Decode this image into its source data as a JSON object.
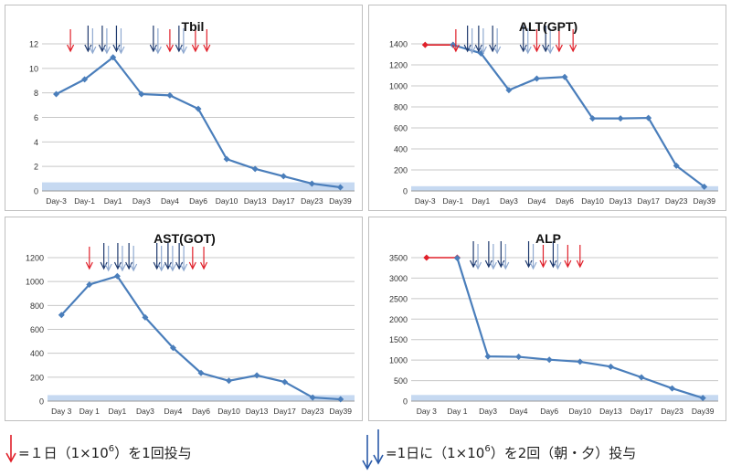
{
  "chart_data": [
    {
      "type": "line",
      "title": "Tbil",
      "categories": [
        "Day-3",
        "Day-1",
        "Day1",
        "Day3",
        "Day4",
        "Day6",
        "Day10",
        "Day13",
        "Day17",
        "Day23",
        "Day39"
      ],
      "series": [
        {
          "values": [
            7.9,
            9.1,
            10.9,
            7.9,
            7.8,
            6.7,
            2.6,
            1.8,
            1.2,
            0.6,
            0.3
          ]
        }
      ],
      "yticks": [
        "0",
        "2",
        "4",
        "6",
        "8",
        "10",
        "12"
      ],
      "ylim": [
        0,
        12
      ],
      "normal_band": [
        0,
        0.7
      ],
      "grid": true,
      "arrows": [
        {
          "x": 0.5,
          "kind": "single"
        },
        {
          "x": 1.2,
          "kind": "double"
        },
        {
          "x": 1.7,
          "kind": "double"
        },
        {
          "x": 2.2,
          "kind": "double"
        },
        {
          "x": 3.5,
          "kind": "double"
        },
        {
          "x": 4.0,
          "kind": "single"
        },
        {
          "x": 4.4,
          "kind": "double"
        },
        {
          "x": 4.9,
          "kind": "single"
        },
        {
          "x": 5.3,
          "kind": "single"
        }
      ]
    },
    {
      "type": "line",
      "title": "ALT(GPT)",
      "categories": [
        "Day-3",
        "Day-1",
        "Day1",
        "Day3",
        "Day4",
        "Day6",
        "Day10",
        "Day13",
        "Day17",
        "Day23",
        "Day39"
      ],
      "series": [
        {
          "values": [
            null,
            1390,
            1310,
            960,
            1070,
            1085,
            690,
            690,
            695,
            240,
            40
          ]
        }
      ],
      "pre_treatment": [
        {
          "x": 0,
          "y": 1390
        },
        {
          "x": 1,
          "y": 1390
        }
      ],
      "yticks": [
        "0",
        "200",
        "400",
        "600",
        "800",
        "1000",
        "1200",
        "1400"
      ],
      "ylim": [
        0,
        1400
      ],
      "normal_band": [
        0,
        45
      ],
      "grid": true,
      "arrows": [
        {
          "x": 1.1,
          "kind": "single"
        },
        {
          "x": 1.6,
          "kind": "double"
        },
        {
          "x": 2.0,
          "kind": "double"
        },
        {
          "x": 2.5,
          "kind": "double"
        },
        {
          "x": 3.6,
          "kind": "double"
        },
        {
          "x": 4.0,
          "kind": "single"
        },
        {
          "x": 4.4,
          "kind": "double"
        },
        {
          "x": 4.8,
          "kind": "single"
        },
        {
          "x": 5.3,
          "kind": "single"
        }
      ]
    },
    {
      "type": "line",
      "title": "AST(GOT)",
      "categories": [
        "Day 3",
        "Day 1",
        "Day1",
        "Day3",
        "Day4",
        "Day6",
        "Day10",
        "Day13",
        "Day17",
        "Day23",
        "Day39"
      ],
      "series": [
        {
          "values": [
            720,
            975,
            1045,
            700,
            445,
            235,
            170,
            215,
            160,
            30,
            15
          ]
        }
      ],
      "yticks": [
        "0",
        "200",
        "400",
        "600",
        "800",
        "1000",
        "1200"
      ],
      "ylim": [
        0,
        1200
      ],
      "normal_band": [
        0,
        50
      ],
      "grid": true,
      "arrows": [
        {
          "x": 1.0,
          "kind": "single"
        },
        {
          "x": 1.6,
          "kind": "double"
        },
        {
          "x": 2.1,
          "kind": "double"
        },
        {
          "x": 2.5,
          "kind": "double"
        },
        {
          "x": 3.5,
          "kind": "double"
        },
        {
          "x": 3.9,
          "kind": "double"
        },
        {
          "x": 4.3,
          "kind": "double"
        },
        {
          "x": 4.7,
          "kind": "single"
        },
        {
          "x": 5.1,
          "kind": "single"
        }
      ]
    },
    {
      "type": "line",
      "title": "ALP",
      "categories": [
        "Day 3",
        "Day 1",
        "Day3",
        "Day4",
        "Day6",
        "Day10",
        "Day13",
        "Day17",
        "Day23",
        "Day39"
      ],
      "series": [
        {
          "values": [
            null,
            3490,
            1090,
            1080,
            1010,
            960,
            840,
            580,
            310,
            75
          ]
        }
      ],
      "pre_treatment": [
        {
          "x": 0,
          "y": 3500
        },
        {
          "x": 1,
          "y": 3500
        }
      ],
      "yticks": [
        "0",
        "500",
        "1000",
        "1500",
        "2000",
        "2500",
        "3000",
        "3500"
      ],
      "ylim": [
        0,
        3500
      ],
      "normal_band": [
        0,
        150
      ],
      "grid": true,
      "arrows": [
        {
          "x": 1.6,
          "kind": "double"
        },
        {
          "x": 2.1,
          "kind": "double"
        },
        {
          "x": 2.5,
          "kind": "double"
        },
        {
          "x": 3.4,
          "kind": "double"
        },
        {
          "x": 3.8,
          "kind": "single"
        },
        {
          "x": 4.2,
          "kind": "double"
        },
        {
          "x": 4.6,
          "kind": "single"
        },
        {
          "x": 5.0,
          "kind": "single"
        }
      ]
    }
  ],
  "legend": {
    "single_text": "=１日（1×10",
    "single_exp": "6",
    "single_suffix": "）を1回投与",
    "double_text": "=1日に（1×10",
    "double_exp": "6",
    "double_suffix": "）を2回（朝・夕）投与"
  },
  "colors": {
    "line": "#4a7ebb",
    "marker": "#4a7ebb",
    "pre_line": "#e0202a",
    "grid": "#c8c8c8",
    "band": "#c6d9f1",
    "arrow_single": "#e0202a",
    "arrow_double": "#1f3a6e",
    "arrow_double_light": "#8fa9d0"
  }
}
